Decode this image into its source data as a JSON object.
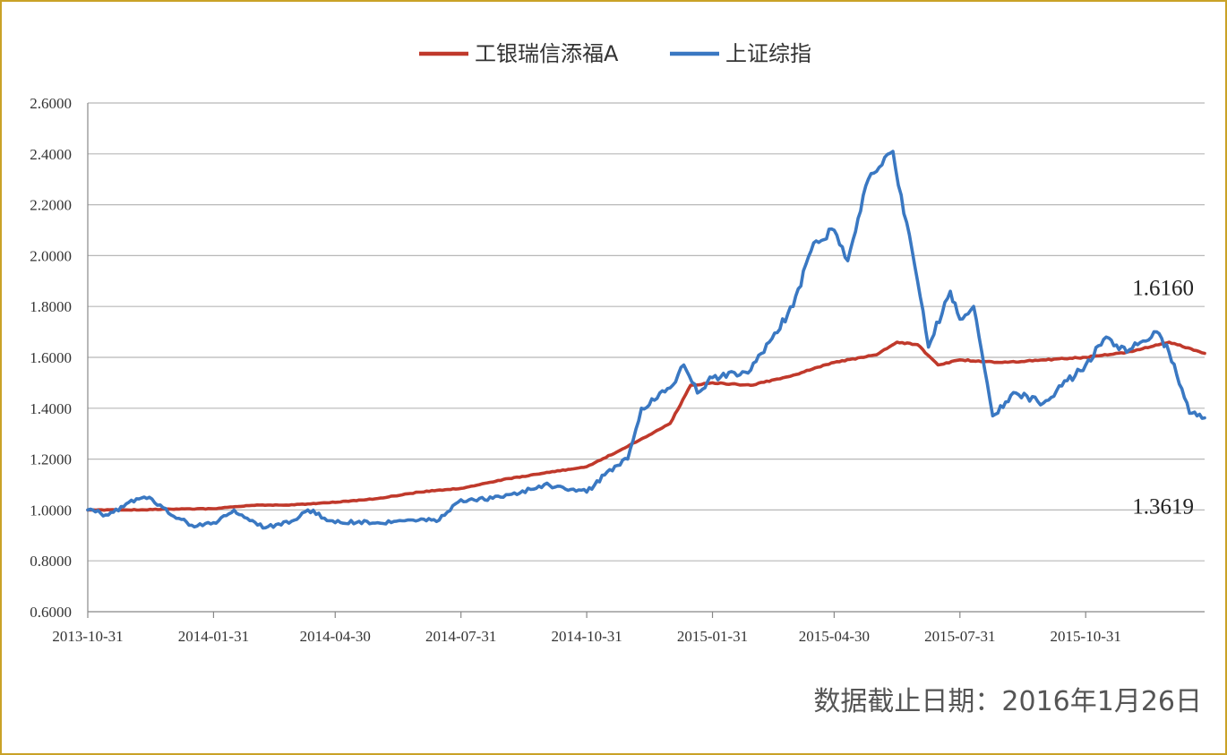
{
  "chart_data": {
    "type": "line",
    "title": "",
    "xlabel": "",
    "ylabel": "",
    "ylim": [
      0.6,
      2.6
    ],
    "xlim": [
      "2013-10-31",
      "2016-01-26"
    ],
    "yticks": [
      0.6,
      0.8,
      1.0,
      1.2,
      1.4,
      1.6,
      1.8,
      2.0,
      2.2,
      2.4,
      2.6
    ],
    "ytick_labels": [
      "0.6000",
      "0.8000",
      "1.0000",
      "1.2000",
      "1.4000",
      "1.6000",
      "1.8000",
      "2.0000",
      "2.2000",
      "2.4000",
      "2.6000"
    ],
    "xtick_labels": [
      "2013-10-31",
      "2014-01-31",
      "2014-04-30",
      "2014-07-31",
      "2014-10-31",
      "2015-01-31",
      "2015-04-30",
      "2015-07-31",
      "2015-10-31"
    ],
    "grid": "horizontal",
    "legend_position": "top-center",
    "series": [
      {
        "name": "工银瑞信添福A",
        "color": "#c0392b",
        "points": [
          [
            "2013-10-31",
            1.0
          ],
          [
            "2013-11-30",
            1.0
          ],
          [
            "2013-12-31",
            1.003
          ],
          [
            "2014-01-31",
            1.005
          ],
          [
            "2014-02-28",
            1.018
          ],
          [
            "2014-03-31",
            1.02
          ],
          [
            "2014-04-30",
            1.03
          ],
          [
            "2014-05-31",
            1.045
          ],
          [
            "2014-06-30",
            1.07
          ],
          [
            "2014-07-31",
            1.085
          ],
          [
            "2014-08-31",
            1.12
          ],
          [
            "2014-09-30",
            1.145
          ],
          [
            "2014-10-31",
            1.17
          ],
          [
            "2014-11-30",
            1.25
          ],
          [
            "2014-12-31",
            1.34
          ],
          [
            "2015-01-15",
            1.49
          ],
          [
            "2015-01-31",
            1.5
          ],
          [
            "2015-02-28",
            1.49
          ],
          [
            "2015-03-31",
            1.53
          ],
          [
            "2015-04-30",
            1.58
          ],
          [
            "2015-05-31",
            1.61
          ],
          [
            "2015-06-15",
            1.66
          ],
          [
            "2015-06-30",
            1.65
          ],
          [
            "2015-07-15",
            1.57
          ],
          [
            "2015-07-31",
            1.59
          ],
          [
            "2015-08-31",
            1.58
          ],
          [
            "2015-09-30",
            1.59
          ],
          [
            "2015-10-31",
            1.6
          ],
          [
            "2015-11-30",
            1.62
          ],
          [
            "2015-12-31",
            1.66
          ],
          [
            "2016-01-26",
            1.616
          ]
        ]
      },
      {
        "name": "上证综指",
        "color": "#3a78c2",
        "points": [
          [
            "2013-10-31",
            1.0
          ],
          [
            "2013-11-15",
            0.98
          ],
          [
            "2013-11-30",
            1.03
          ],
          [
            "2013-12-15",
            1.05
          ],
          [
            "2013-12-31",
            0.98
          ],
          [
            "2014-01-15",
            0.94
          ],
          [
            "2014-01-31",
            0.95
          ],
          [
            "2014-02-15",
            1.0
          ],
          [
            "2014-03-10",
            0.93
          ],
          [
            "2014-03-31",
            0.96
          ],
          [
            "2014-04-10",
            1.0
          ],
          [
            "2014-04-30",
            0.95
          ],
          [
            "2014-05-31",
            0.95
          ],
          [
            "2014-06-30",
            0.96
          ],
          [
            "2014-07-15",
            0.96
          ],
          [
            "2014-07-31",
            1.04
          ],
          [
            "2014-08-31",
            1.05
          ],
          [
            "2014-09-30",
            1.1
          ],
          [
            "2014-10-31",
            1.07
          ],
          [
            "2014-11-15",
            1.15
          ],
          [
            "2014-11-30",
            1.2
          ],
          [
            "2014-12-10",
            1.4
          ],
          [
            "2014-12-31",
            1.48
          ],
          [
            "2015-01-10",
            1.57
          ],
          [
            "2015-01-20",
            1.46
          ],
          [
            "2015-01-31",
            1.52
          ],
          [
            "2015-02-28",
            1.55
          ],
          [
            "2015-03-31",
            1.8
          ],
          [
            "2015-04-15",
            2.05
          ],
          [
            "2015-04-30",
            2.1
          ],
          [
            "2015-05-10",
            1.98
          ],
          [
            "2015-05-25",
            2.3
          ],
          [
            "2015-06-12",
            2.41
          ],
          [
            "2015-06-30",
            1.9
          ],
          [
            "2015-07-08",
            1.64
          ],
          [
            "2015-07-24",
            1.86
          ],
          [
            "2015-07-31",
            1.75
          ],
          [
            "2015-08-10",
            1.8
          ],
          [
            "2015-08-24",
            1.37
          ],
          [
            "2015-09-10",
            1.46
          ],
          [
            "2015-09-30",
            1.42
          ],
          [
            "2015-10-31",
            1.57
          ],
          [
            "2015-11-15",
            1.68
          ],
          [
            "2015-11-30",
            1.62
          ],
          [
            "2015-12-22",
            1.7
          ],
          [
            "2015-12-31",
            1.62
          ],
          [
            "2016-01-15",
            1.38
          ],
          [
            "2016-01-26",
            1.3619
          ]
        ]
      }
    ],
    "annotations": [
      {
        "text": "1.6160",
        "series": "工银瑞信添福A",
        "date": "2016-01-26",
        "value": 1.616
      },
      {
        "text": "1.3619",
        "series": "上证综指",
        "date": "2016-01-26",
        "value": 1.3619
      }
    ]
  },
  "footnote": "数据截止日期：2016年1月26日"
}
